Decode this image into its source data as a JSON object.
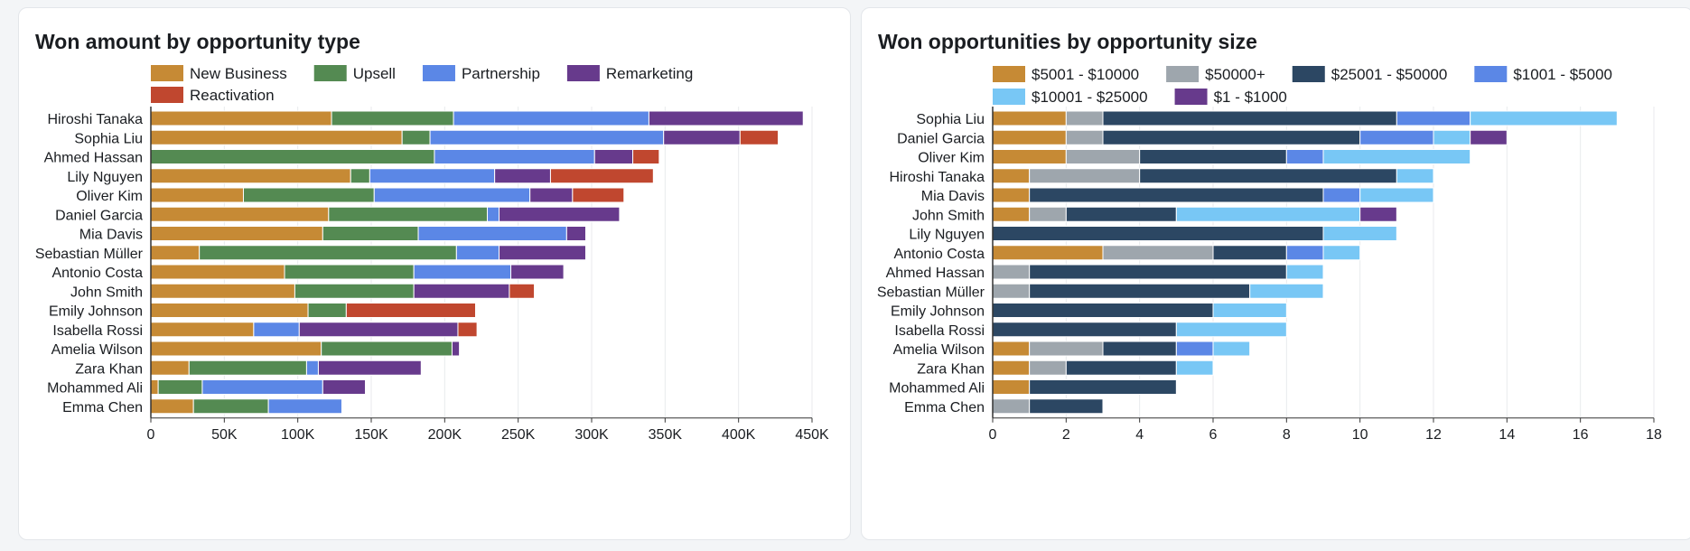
{
  "colors": {
    "background": "#f3f5f7",
    "card": "#ffffff",
    "text": "#1a1d21",
    "grid": "#e8eaed",
    "axis": "#333333"
  },
  "chart_data": [
    {
      "type": "bar",
      "orientation": "horizontal",
      "stacked": true,
      "title": "Won amount by opportunity type",
      "xlabel": "",
      "ylabel": "",
      "xlim": [
        0,
        450000
      ],
      "ticks": [
        0,
        50000,
        100000,
        150000,
        200000,
        250000,
        300000,
        350000,
        400000,
        450000
      ],
      "tick_labels": [
        "0",
        "50K",
        "100K",
        "150K",
        "200K",
        "250K",
        "300K",
        "350K",
        "400K",
        "450K"
      ],
      "legend_position": "top",
      "categories": [
        "Hiroshi Tanaka",
        "Sophia Liu",
        "Ahmed Hassan",
        "Lily Nguyen",
        "Oliver Kim",
        "Daniel Garcia",
        "Mia Davis",
        "Sebastian Müller",
        "Antonio Costa",
        "John Smith",
        "Emily Johnson",
        "Isabella Rossi",
        "Amelia Wilson",
        "Zara Khan",
        "Mohammed Ali",
        "Emma Chen"
      ],
      "series": [
        {
          "name": "New Business",
          "color": "#c68a35",
          "values": [
            123000,
            171000,
            0,
            136000,
            63000,
            121000,
            117000,
            33000,
            91000,
            98000,
            107000,
            70000,
            116000,
            26000,
            5000,
            29000
          ]
        },
        {
          "name": "Upsell",
          "color": "#548a52",
          "values": [
            83000,
            19000,
            193000,
            13000,
            89000,
            108000,
            65000,
            175000,
            88000,
            81000,
            26000,
            0,
            89000,
            80000,
            30000,
            51000
          ]
        },
        {
          "name": "Partnership",
          "color": "#5b87e6",
          "values": [
            133000,
            159000,
            109000,
            85000,
            106000,
            8000,
            101000,
            29000,
            66000,
            0,
            0,
            31000,
            0,
            8000,
            82000,
            50000
          ]
        },
        {
          "name": "Remarketing",
          "color": "#673a8c",
          "values": [
            105000,
            52000,
            26000,
            38000,
            29000,
            82000,
            13000,
            59000,
            36000,
            65000,
            0,
            108000,
            5000,
            70000,
            29000,
            0
          ]
        },
        {
          "name": "Reactivation",
          "color": "#c0472f",
          "values": [
            0,
            26000,
            18000,
            70000,
            35000,
            0,
            0,
            0,
            0,
            17000,
            88000,
            13000,
            0,
            0,
            0,
            0
          ]
        }
      ]
    },
    {
      "type": "bar",
      "orientation": "horizontal",
      "stacked": true,
      "title": "Won opportunities by opportunity size",
      "xlabel": "",
      "ylabel": "",
      "xlim": [
        0,
        18
      ],
      "ticks": [
        0,
        2,
        4,
        6,
        8,
        10,
        12,
        14,
        16,
        18
      ],
      "tick_labels": [
        "0",
        "2",
        "4",
        "6",
        "8",
        "10",
        "12",
        "14",
        "16",
        "18"
      ],
      "legend_position": "top",
      "categories": [
        "Sophia Liu",
        "Daniel Garcia",
        "Oliver Kim",
        "Hiroshi Tanaka",
        "Mia Davis",
        "John Smith",
        "Lily Nguyen",
        "Antonio Costa",
        "Ahmed Hassan",
        "Sebastian Müller",
        "Emily Johnson",
        "Isabella Rossi",
        "Amelia Wilson",
        "Zara Khan",
        "Mohammed Ali",
        "Emma Chen"
      ],
      "series": [
        {
          "name": "$5001 - $10000",
          "color": "#c68a35",
          "values": [
            2,
            2,
            2,
            1,
            1,
            1,
            0,
            3,
            0,
            0,
            0,
            0,
            1,
            1,
            1,
            0
          ]
        },
        {
          "name": "$50000+",
          "color": "#9ea6ad",
          "values": [
            1,
            1,
            2,
            3,
            0,
            1,
            0,
            3,
            1,
            1,
            0,
            0,
            2,
            1,
            0,
            1
          ]
        },
        {
          "name": "$25001 - $50000",
          "color": "#2c4763",
          "values": [
            8,
            7,
            4,
            7,
            8,
            3,
            9,
            2,
            7,
            6,
            6,
            5,
            2,
            3,
            4,
            2
          ]
        },
        {
          "name": "$1001 - $5000",
          "color": "#5b87e6",
          "values": [
            2,
            2,
            1,
            0,
            1,
            0,
            0,
            1,
            0,
            0,
            0,
            0,
            1,
            0,
            0,
            0
          ]
        },
        {
          "name": "$10001 - $25000",
          "color": "#78c7f5",
          "values": [
            4,
            1,
            4,
            1,
            2,
            5,
            2,
            1,
            1,
            2,
            2,
            3,
            1,
            1,
            0,
            0
          ]
        },
        {
          "name": "$1 - $1000",
          "color": "#673a8c",
          "values": [
            0,
            1,
            0,
            0,
            0,
            1,
            0,
            0,
            0,
            0,
            0,
            0,
            0,
            0,
            0,
            0
          ]
        }
      ]
    }
  ]
}
